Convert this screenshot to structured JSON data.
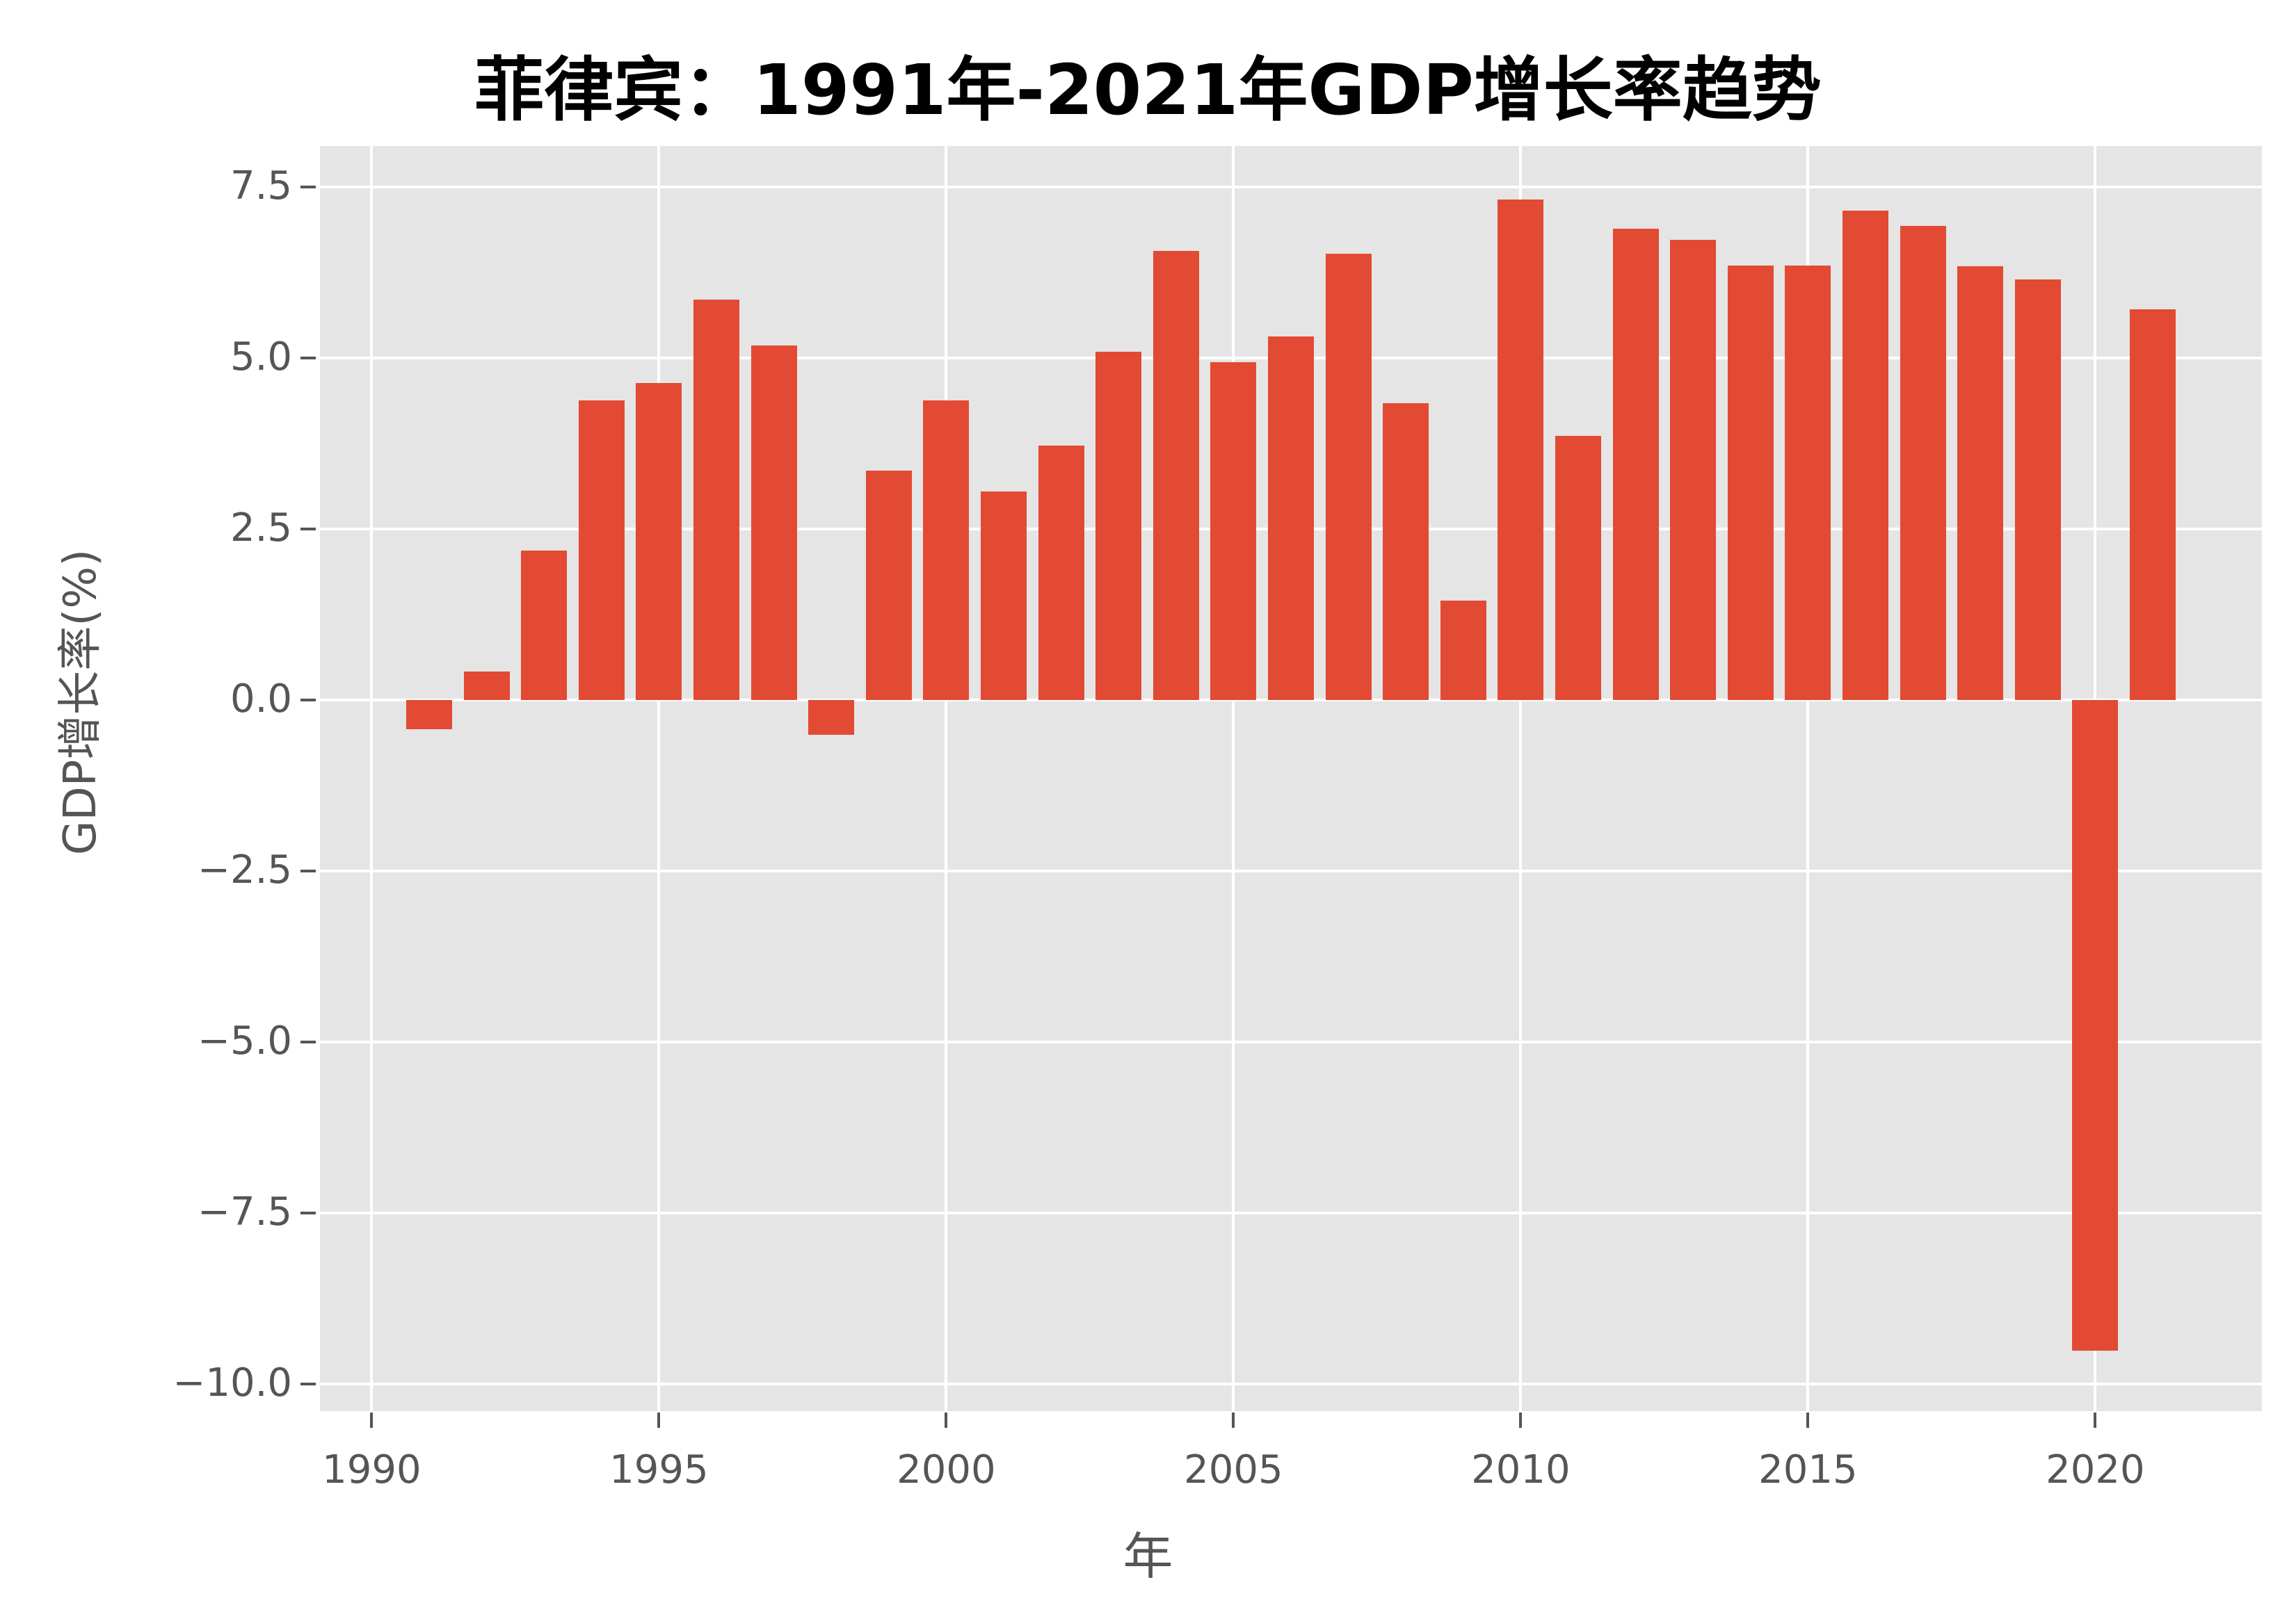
{
  "chart_data": {
    "type": "bar",
    "title": "菲律宾：1991年-2021年GDP增长率趋势",
    "xlabel": "年",
    "ylabel": "GDP增长率(%)",
    "categories": [
      1991,
      1992,
      1993,
      1994,
      1995,
      1996,
      1997,
      1998,
      1999,
      2000,
      2001,
      2002,
      2003,
      2004,
      2005,
      2006,
      2007,
      2008,
      2009,
      2010,
      2011,
      2012,
      2013,
      2014,
      2015,
      2016,
      2017,
      2018,
      2019,
      2020,
      2021
    ],
    "values": [
      -0.43,
      0.42,
      2.18,
      4.38,
      4.63,
      5.85,
      5.18,
      -0.51,
      3.35,
      4.38,
      3.05,
      3.72,
      5.09,
      6.57,
      4.94,
      5.31,
      6.52,
      4.34,
      1.45,
      7.32,
      3.86,
      6.89,
      6.73,
      6.35,
      6.35,
      7.15,
      6.93,
      6.34,
      6.15,
      -9.52,
      5.71
    ],
    "xticks": [
      "1990",
      "1995",
      "2000",
      "2005",
      "2010",
      "2015",
      "2020"
    ],
    "yticks": [
      "7.5",
      "5.0",
      "2.5",
      "0.0",
      "−2.5",
      "−5.0",
      "−7.5",
      "−10.0"
    ],
    "xlim": [
      1989.1,
      2022.9
    ],
    "ylim": [
      -10.4,
      8.1
    ],
    "grid": true,
    "style": "ggplot",
    "bar_color": "#e24a33",
    "legend": null
  }
}
